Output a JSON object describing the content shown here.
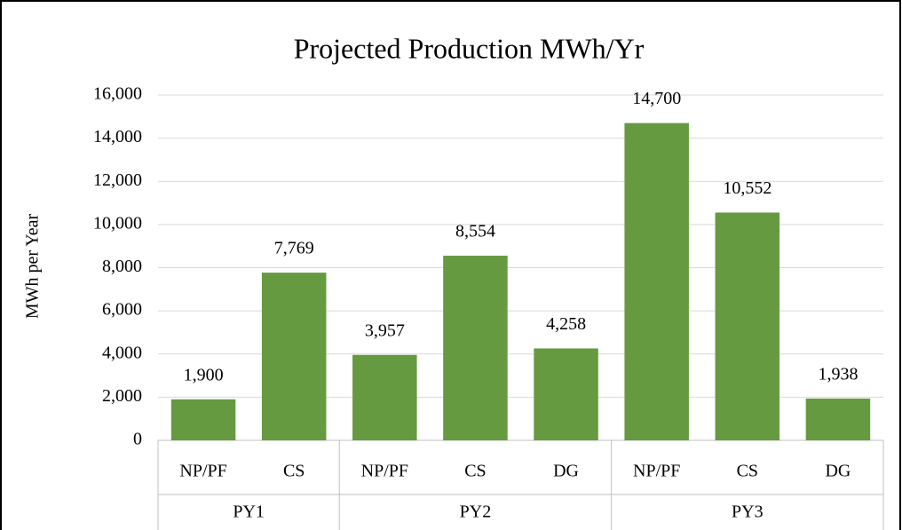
{
  "chart_data": {
    "type": "bar",
    "title": "Projected Production MWh/Yr",
    "y_label": "MWh per Year",
    "categories": [
      "NP/PF",
      "CS",
      "NP/PF",
      "CS",
      "DG",
      "NP/PF",
      "CS",
      "DG"
    ],
    "groups": [
      {
        "name": "PY1",
        "count": 2
      },
      {
        "name": "PY2",
        "count": 3
      },
      {
        "name": "PY3",
        "count": 3
      }
    ],
    "values": [
      1900,
      7769,
      3957,
      8554,
      4258,
      14700,
      10552,
      1938
    ],
    "value_labels": [
      "1,900",
      "7,769",
      "3,957",
      "8,554",
      "4,258",
      "14,700",
      "10,552",
      "1,938"
    ],
    "color": "#659a41",
    "ylim": [
      0,
      16000
    ],
    "yticks": [
      0,
      {
        "value": 2000,
        "label": "2,000"
      },
      {
        "value": 4000,
        "label": "4,000"
      },
      {
        "value": 6000,
        "label": "6,000"
      },
      {
        "value": 8000,
        "label": "8,000"
      },
      {
        "value": 10000,
        "label": "10,000"
      },
      {
        "value": 12000,
        "label": "12,000"
      },
      {
        "value": 14000,
        "label": "14,000"
      },
      {
        "value": 16000,
        "label": "16,000"
      }
    ],
    "grid": true
  }
}
